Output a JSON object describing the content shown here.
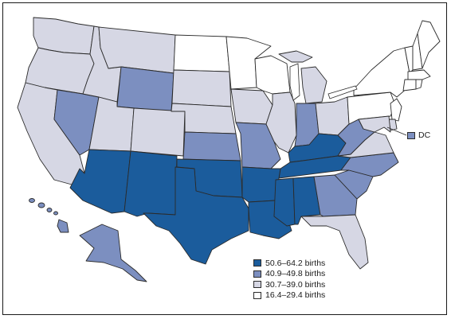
{
  "colors": {
    "high": "#1b5c9c",
    "mid": "#7c8fc0",
    "low": "#d6d7e4",
    "lowest": "#ffffff"
  },
  "legend": [
    {
      "label": "50.6–64.2 births",
      "color_key": "high"
    },
    {
      "label": "40.9–49.8 births",
      "color_key": "mid"
    },
    {
      "label": "30.7–39.0 births",
      "color_key": "low"
    },
    {
      "label": "16.4–29.4 births",
      "color_key": "lowest"
    }
  ],
  "dc": {
    "label": "DC",
    "color_key": "mid"
  }
}
